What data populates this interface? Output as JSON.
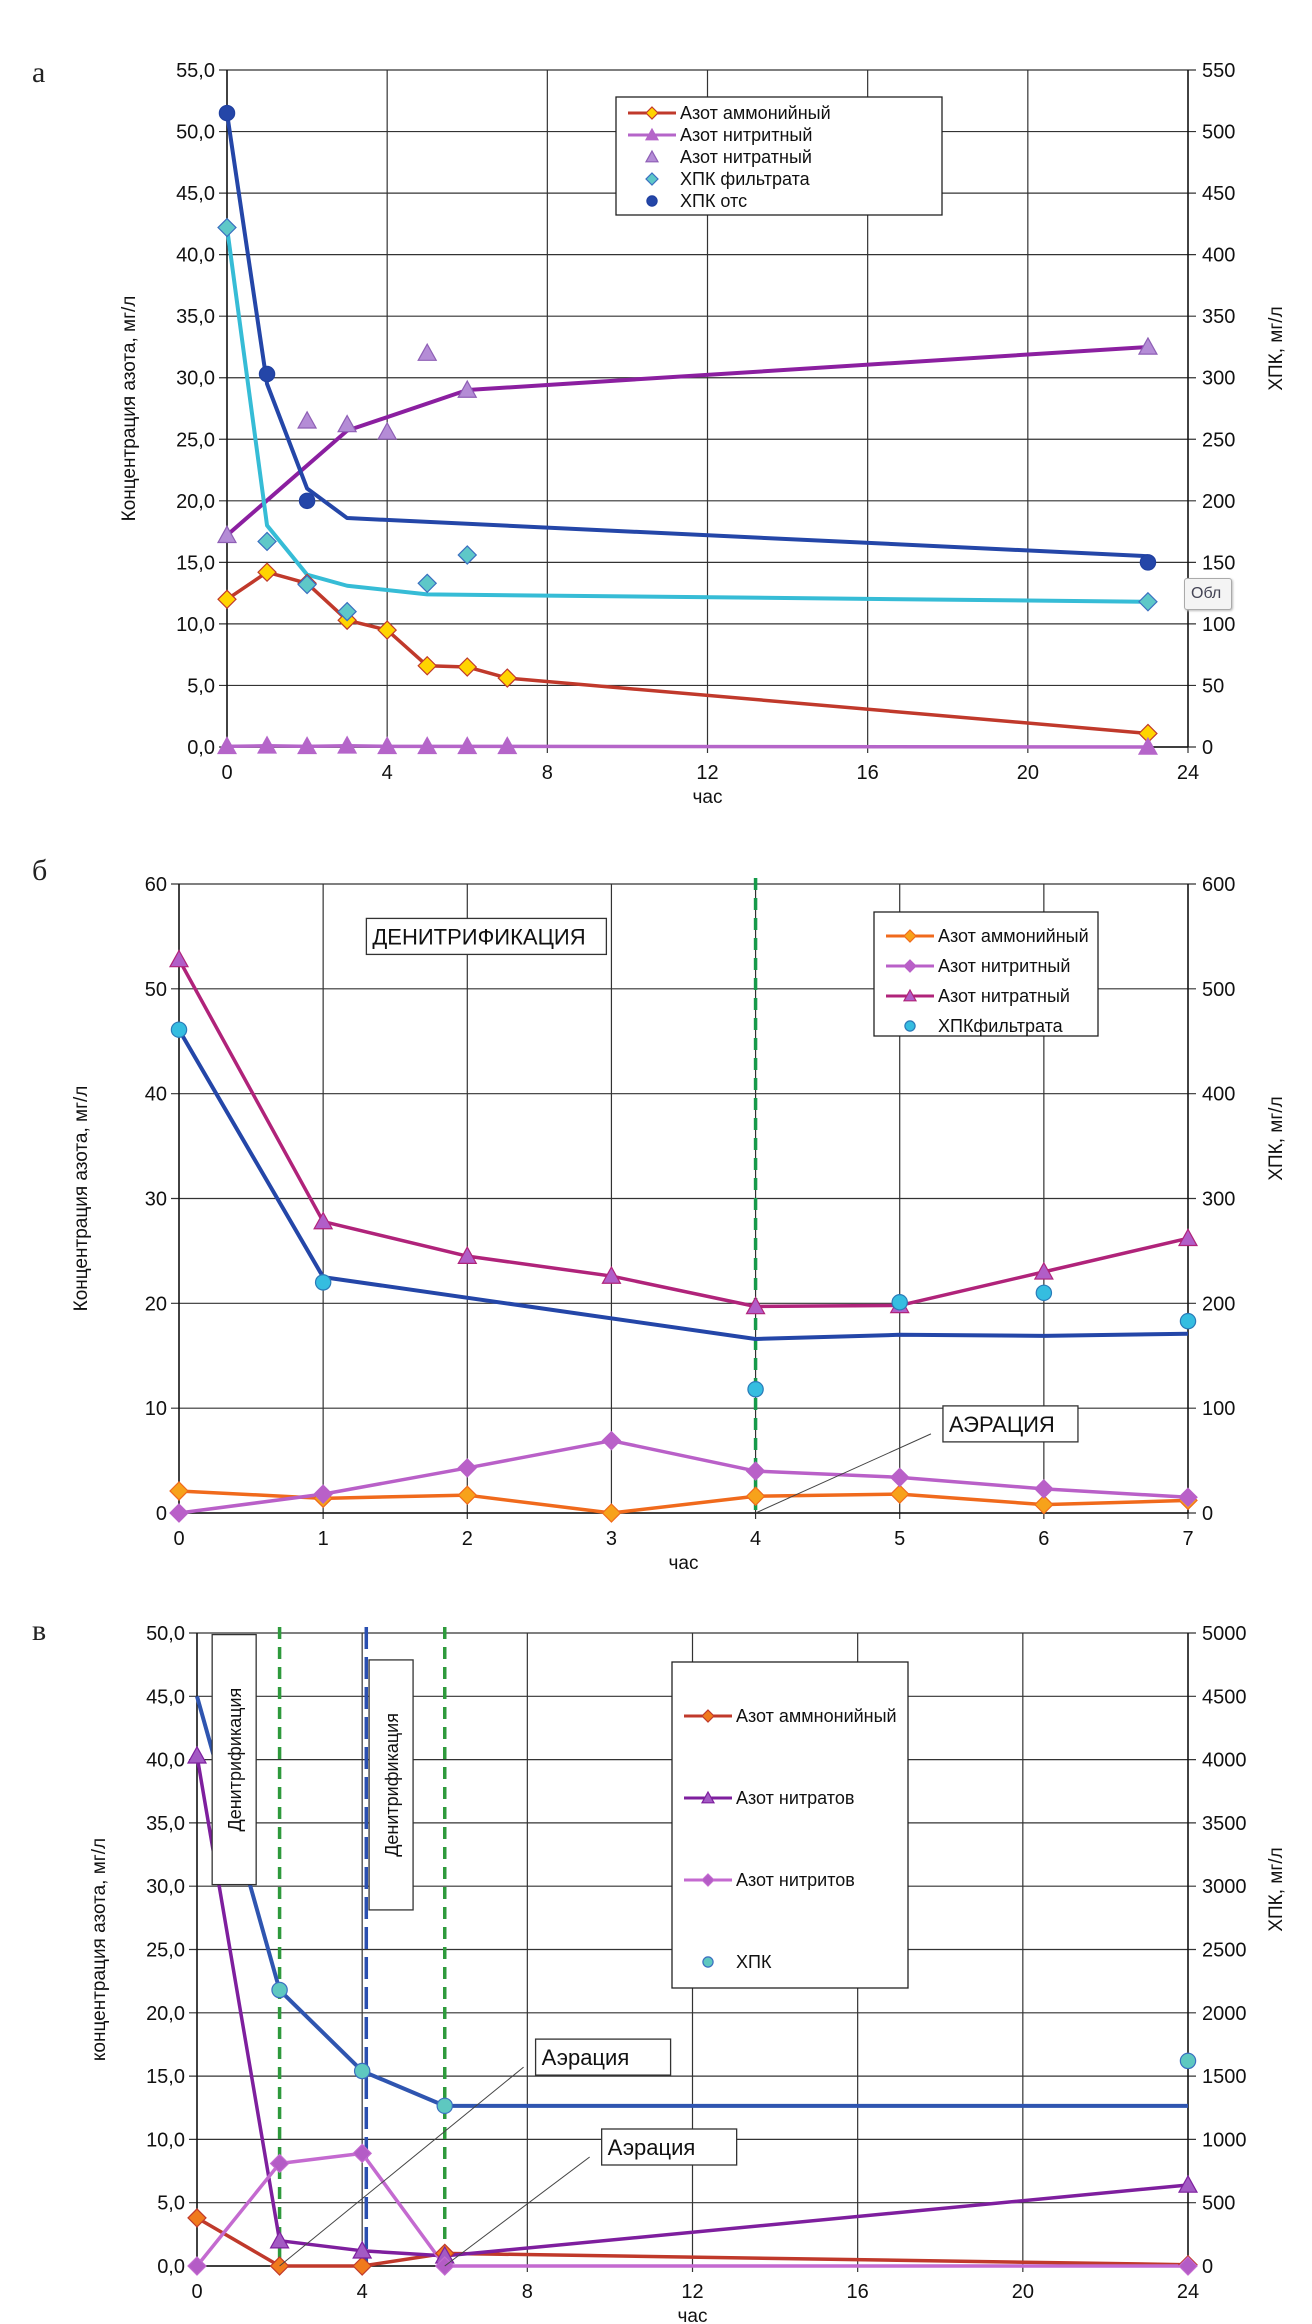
{
  "chart_data": [
    {
      "panel": "а",
      "type": "line",
      "xlabel": "час",
      "ylabel": "Концентрация азота, мг/л",
      "y2label": "ХПК, мг/л",
      "xlim": [
        0,
        24
      ],
      "ylim": [
        0,
        55
      ],
      "y2lim": [
        0,
        550
      ],
      "xticks": [
        "0",
        "4",
        "8",
        "12",
        "16",
        "20",
        "24"
      ],
      "yticks": [
        "0,0",
        "5,0",
        "10,0",
        "15,0",
        "20,0",
        "25,0",
        "30,0",
        "35,0",
        "40,0",
        "45,0",
        "50,0",
        "55,0"
      ],
      "y2ticks": [
        "0",
        "50",
        "100",
        "150",
        "200",
        "250",
        "300",
        "350",
        "400",
        "450",
        "500",
        "550"
      ],
      "grid": true,
      "legend_position": "top-right",
      "series": [
        {
          "name": "Азот аммонийный",
          "kind": "line-marker",
          "marker": "diamond",
          "color": "#c0392b",
          "fill": "#ffd400",
          "axis": "left",
          "x": [
            0,
            1,
            2,
            3,
            4,
            5,
            6,
            7,
            23
          ],
          "values": [
            12.0,
            14.2,
            13.3,
            10.3,
            9.5,
            6.6,
            6.5,
            5.6,
            1.1
          ]
        },
        {
          "name": "Азот нитритный",
          "kind": "line-marker",
          "marker": "triangle",
          "color": "#b565c9",
          "fill": "#b565c9",
          "axis": "left",
          "x": [
            0,
            1,
            2,
            3,
            4,
            5,
            6,
            7,
            23
          ],
          "values": [
            0.05,
            0.1,
            0.05,
            0.1,
            0.05,
            0.05,
            0.05,
            0.05,
            0.0
          ]
        },
        {
          "name": "Азот нитратный",
          "kind": "scatter",
          "marker": "triangle",
          "color": "#8e5fb5",
          "fill": "#b48cd6",
          "axis": "left",
          "x": [
            0,
            2,
            3,
            4,
            5,
            6,
            23
          ],
          "values": [
            17.2,
            26.5,
            26.2,
            25.6,
            32.0,
            29.0,
            32.5
          ]
        },
        {
          "name": "Азот нитратный (тренд)",
          "kind": "trend",
          "color": "#8b1fa0",
          "axis": "left",
          "in_legend": false,
          "x": [
            0,
            3,
            6,
            23
          ],
          "values": [
            17.2,
            25.7,
            29.0,
            32.5
          ]
        },
        {
          "name": "ХПК фильтрата",
          "kind": "scatter",
          "marker": "diamond",
          "color": "#3a6fc0",
          "fill": "#5ec8c8",
          "axis": "right",
          "x": [
            0,
            1,
            2,
            3,
            5,
            6,
            23
          ],
          "values": [
            422,
            167,
            132,
            110,
            133,
            156,
            118
          ]
        },
        {
          "name": "ХПК фильтрата (тренд)",
          "kind": "trend",
          "color": "#36bcd6",
          "axis": "right",
          "in_legend": false,
          "x": [
            0,
            1,
            2,
            3,
            5,
            23
          ],
          "values": [
            422,
            180,
            140,
            131,
            124,
            118
          ]
        },
        {
          "name": "ХПК отс",
          "kind": "scatter",
          "marker": "circle",
          "color": "#2040a0",
          "fill": "#2446a8",
          "axis": "right",
          "x": [
            0,
            1,
            2,
            23
          ],
          "values": [
            515,
            303,
            200,
            150
          ]
        },
        {
          "name": "ХПК отс (тренд)",
          "kind": "trend",
          "color": "#2446a8",
          "axis": "right",
          "in_legend": false,
          "x": [
            0,
            1,
            2,
            3,
            23
          ],
          "values": [
            515,
            295,
            210,
            186,
            155
          ]
        }
      ]
    },
    {
      "panel": "б",
      "type": "line",
      "xlabel": "час",
      "ylabel": "Концентрация азота, мг/л",
      "y2label": "ХПК, мг/л",
      "xlim": [
        0,
        7
      ],
      "ylim": [
        0,
        60
      ],
      "y2lim": [
        0,
        600
      ],
      "xticks": [
        "0",
        "1",
        "2",
        "3",
        "4",
        "5",
        "6",
        "7"
      ],
      "yticks": [
        "0",
        "10",
        "20",
        "30",
        "40",
        "50",
        "60"
      ],
      "y2ticks": [
        "0",
        "100",
        "200",
        "300",
        "400",
        "500",
        "600"
      ],
      "grid": true,
      "legend_position": "top-right",
      "annotations": [
        {
          "text": "ДЕНИТРИФИКАЦИЯ",
          "x": 1.3,
          "y": 55
        },
        {
          "text": "АЭРАЦИЯ",
          "x": 5.3,
          "y": 8.5,
          "arrow_to": [
            4,
            0
          ]
        }
      ],
      "vlines": [
        {
          "x": 4,
          "color": "#159a4a",
          "style": "dashed"
        }
      ],
      "series": [
        {
          "name": "Азот аммонийный",
          "kind": "line-marker",
          "marker": "diamond",
          "color": "#f06a1c",
          "fill": "#f7a21a",
          "axis": "left",
          "x": [
            0,
            1,
            2,
            3,
            4,
            5,
            6,
            7
          ],
          "values": [
            2.1,
            1.4,
            1.7,
            0.0,
            1.6,
            1.8,
            0.8,
            1.2
          ]
        },
        {
          "name": "Азот нитритный",
          "kind": "line-marker",
          "marker": "diamond",
          "color": "#b960c8",
          "fill": "#b960c8",
          "axis": "left",
          "x": [
            0,
            1,
            2,
            3,
            4,
            5,
            6,
            7
          ],
          "values": [
            0.0,
            1.8,
            4.3,
            6.9,
            4.0,
            3.4,
            2.3,
            1.5
          ]
        },
        {
          "name": "Азот нитратный",
          "kind": "line-marker",
          "marker": "triangle",
          "color": "#b0237a",
          "fill": "#b15ec8",
          "axis": "left",
          "x": [
            0,
            1,
            2,
            3,
            4,
            5,
            6,
            7
          ],
          "values": [
            52.8,
            27.8,
            24.5,
            22.6,
            19.7,
            19.8,
            23.0,
            26.2
          ]
        },
        {
          "name": "ХПКфильтрата",
          "kind": "scatter",
          "marker": "circle",
          "color": "#2a7ab8",
          "fill": "#35bde0",
          "axis": "right",
          "x": [
            0,
            1,
            4,
            5,
            6,
            7
          ],
          "values": [
            461,
            220,
            118,
            201,
            210,
            183
          ]
        },
        {
          "name": "ХПКфильтрата (тренд)",
          "kind": "trend",
          "color": "#2446a8",
          "axis": "right",
          "in_legend": false,
          "x": [
            0,
            1,
            4,
            5,
            6,
            7
          ],
          "values": [
            461,
            225,
            166,
            170,
            169,
            171
          ]
        }
      ]
    },
    {
      "panel": "в",
      "type": "line",
      "xlabel": "час",
      "ylabel": "концентрация азота, мг/л",
      "y2label": "ХПК, мг/л",
      "xlim": [
        0,
        24
      ],
      "ylim": [
        0,
        50
      ],
      "y2lim": [
        0,
        5000
      ],
      "xticks": [
        "0",
        "4",
        "8",
        "12",
        "16",
        "20",
        "24"
      ],
      "yticks": [
        "0,0",
        "5,0",
        "10,0",
        "15,0",
        "20,0",
        "25,0",
        "30,0",
        "35,0",
        "40,0",
        "45,0",
        "50,0"
      ],
      "y2ticks": [
        "0",
        "500",
        "1000",
        "1500",
        "2000",
        "2500",
        "3000",
        "3500",
        "4000",
        "4500",
        "5000"
      ],
      "grid": true,
      "legend_position": "top-right",
      "annotations": [
        {
          "text": "Денитрификация",
          "vertical": true,
          "x": 0.9,
          "y": 40
        },
        {
          "text": "Денитрификация",
          "vertical": true,
          "x": 4.7,
          "y": 38
        },
        {
          "text": "Аэрация",
          "x": 8.2,
          "y": 16.5,
          "arrow_to": [
            2,
            0
          ]
        },
        {
          "text": "Аэрация",
          "x": 9.8,
          "y": 9.4,
          "arrow_to": [
            6,
            0
          ]
        }
      ],
      "vlines": [
        {
          "x": 2,
          "color": "#2e9a3c",
          "style": "dashed"
        },
        {
          "x": 4.1,
          "color": "#2a4fb0",
          "style": "long-dashed"
        },
        {
          "x": 6,
          "color": "#2e9a3c",
          "style": "dashed"
        }
      ],
      "series": [
        {
          "name": "Азот аммнонийный",
          "kind": "line-marker",
          "marker": "diamond",
          "color": "#c0392b",
          "fill": "#f07a1c",
          "axis": "left",
          "x": [
            0,
            2,
            4,
            6,
            24
          ],
          "values": [
            3.8,
            0.0,
            0.0,
            1.0,
            0.1
          ]
        },
        {
          "name": "Азот нитратов",
          "kind": "line-marker",
          "marker": "triangle",
          "color": "#7e1f9e",
          "fill": "#a35ac4",
          "axis": "left",
          "x": [
            0,
            2,
            4,
            6,
            24
          ],
          "values": [
            40.3,
            2.0,
            1.2,
            0.8,
            6.4
          ]
        },
        {
          "name": "Азот нитритов",
          "kind": "line-marker",
          "marker": "diamond",
          "color": "#c46ad0",
          "fill": "#b45cc6",
          "axis": "left",
          "x": [
            0,
            2,
            4,
            6,
            24
          ],
          "values": [
            0.0,
            8.1,
            8.9,
            0.0,
            0.0
          ]
        },
        {
          "name": "ХПК",
          "kind": "scatter",
          "marker": "circle",
          "color": "#3a6fc0",
          "fill": "#5ec8c0",
          "axis": "right",
          "x": [
            2,
            4,
            6,
            24
          ],
          "values": [
            2180,
            1540,
            1265,
            1620
          ]
        },
        {
          "name": "ХПК (тренд)",
          "kind": "trend",
          "color": "#2f55b0",
          "axis": "right",
          "in_legend": false,
          "x": [
            0,
            2,
            4,
            6,
            24
          ],
          "values": [
            4500,
            2180,
            1540,
            1265,
            1265
          ]
        }
      ]
    }
  ],
  "labels": {
    "panel_a": "а",
    "panel_b": "б",
    "panel_c": "в",
    "tooltip_fragment": "Обл"
  }
}
